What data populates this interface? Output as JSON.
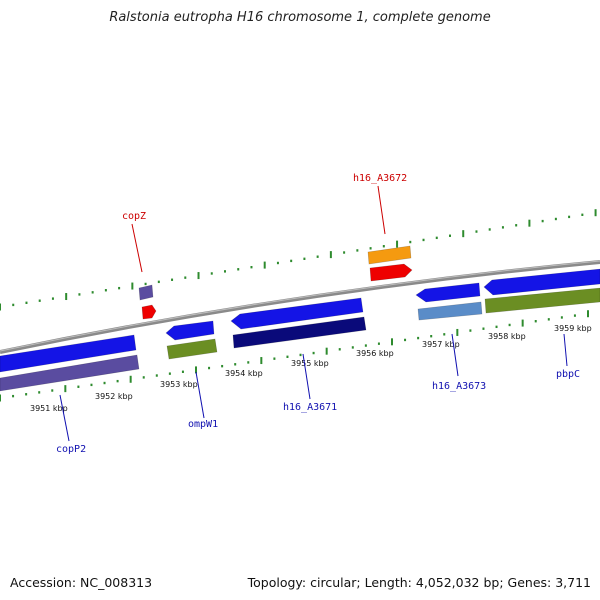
{
  "title": "Ralstonia eutropha H16 chromosome 1, complete genome",
  "footer": {
    "accession": "Accession: NC_008313",
    "topology": "Topology: circular; Length: 4,052,032 bp; Genes: 3,711"
  },
  "colors": {
    "backbone": "#8a8a8a",
    "tick": "#2e8b2e",
    "forward_label": "#cc0000",
    "reverse_label": "#1010b0"
  },
  "scale_labels": [
    "3951 kbp",
    "3952 kbp",
    "3953 kbp",
    "3954 kbp",
    "3955 kbp",
    "3956 kbp",
    "3957 kbp",
    "3958 kbp",
    "3959 kbp"
  ],
  "gene_labels": [
    "copZ",
    "h16_A3672",
    "copP2",
    "ompW1",
    "h16_A3671",
    "h16_A3673",
    "pbpC"
  ],
  "features": [
    {
      "name": "copZ-gene",
      "color": "#5a4ca0"
    },
    {
      "name": "copZ-arrow",
      "color": "#ee0000"
    },
    {
      "name": "h16_A3672-gene",
      "color": "#f59a10"
    },
    {
      "name": "h16_A3672-arrow",
      "color": "#ee0000"
    },
    {
      "name": "copP2-gene",
      "color": "#1414e6"
    },
    {
      "name": "copP2-cds",
      "color": "#5a4ca0"
    },
    {
      "name": "ompW1-gene",
      "color": "#1414e6"
    },
    {
      "name": "ompW1-cds",
      "color": "#6b8e23"
    },
    {
      "name": "h16_A3671-gene",
      "color": "#1414e6"
    },
    {
      "name": "h16_A3671-cds",
      "color": "#0a0a7a"
    },
    {
      "name": "h16_A3673-gene",
      "color": "#1414e6"
    },
    {
      "name": "h16_A3673-cds",
      "color": "#5a8cc8"
    },
    {
      "name": "pbpC-gene",
      "color": "#1414e6"
    },
    {
      "name": "pbpC-cds",
      "color": "#6b8e23"
    }
  ]
}
